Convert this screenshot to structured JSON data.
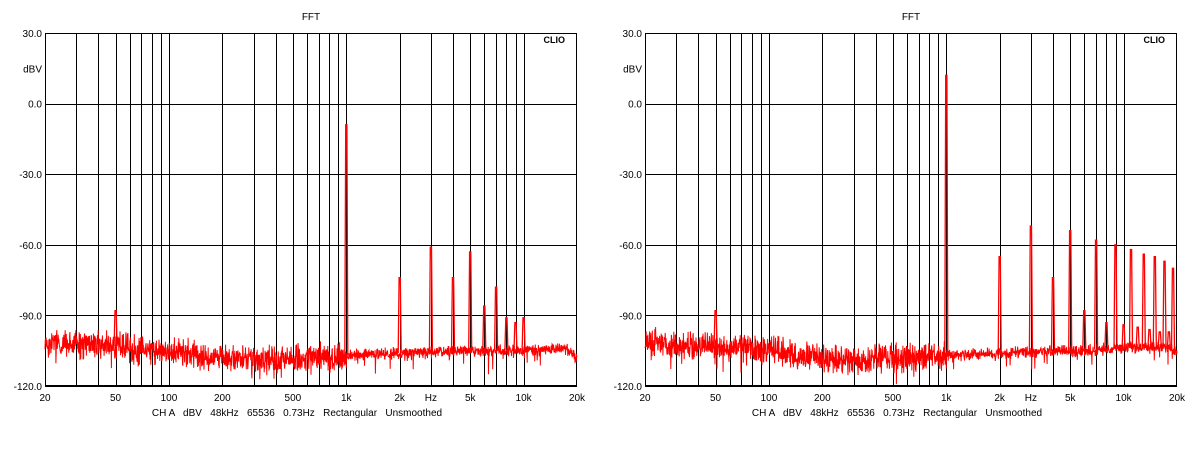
{
  "chart_data": [
    {
      "type": "line",
      "title": "FFT",
      "brand": "CLIO",
      "xlabel": "Hz",
      "ylabel": "dBV",
      "x_scale": "log",
      "xlim": [
        20,
        20000
      ],
      "ylim": [
        -120,
        30
      ],
      "grid": true,
      "x_ticks": [
        {
          "v": 20,
          "label": "20"
        },
        {
          "v": 50,
          "label": "50"
        },
        {
          "v": 100,
          "label": "100"
        },
        {
          "v": 200,
          "label": "200"
        },
        {
          "v": 500,
          "label": "500"
        },
        {
          "v": 1000,
          "label": "1k"
        },
        {
          "v": 2000,
          "label": "2k"
        },
        {
          "v": 5000,
          "label": "5k"
        },
        {
          "v": 10000,
          "label": "10k"
        },
        {
          "v": 20000,
          "label": "20k"
        }
      ],
      "y_ticks": [
        {
          "v": 30,
          "label": "30.0"
        },
        {
          "v": 0,
          "label": "0.0"
        },
        {
          "v": -30,
          "label": "-30.0"
        },
        {
          "v": -60,
          "label": "-60.0"
        },
        {
          "v": -90,
          "label": "-90.0"
        },
        {
          "v": -120,
          "label": "-120.0"
        }
      ],
      "footer": "CH A   dBV   48kHz   65536   0.73Hz   Rectangular   Unsmoothed",
      "series_color": "#ff0000",
      "noise_floor": [
        {
          "x": 20,
          "y": -102
        },
        {
          "x": 30,
          "y": -102
        },
        {
          "x": 50,
          "y": -103
        },
        {
          "x": 100,
          "y": -105
        },
        {
          "x": 200,
          "y": -108
        },
        {
          "x": 300,
          "y": -109
        },
        {
          "x": 500,
          "y": -108
        },
        {
          "x": 1000,
          "y": -107
        },
        {
          "x": 2000,
          "y": -106
        },
        {
          "x": 5000,
          "y": -105
        },
        {
          "x": 10000,
          "y": -105
        },
        {
          "x": 17000,
          "y": -104
        },
        {
          "x": 20000,
          "y": -108
        }
      ],
      "peaks": [
        {
          "x": 50,
          "y": -88
        },
        {
          "x": 1000,
          "y": -9
        },
        {
          "x": 2000,
          "y": -74
        },
        {
          "x": 3000,
          "y": -61
        },
        {
          "x": 4000,
          "y": -74
        },
        {
          "x": 5000,
          "y": -63
        },
        {
          "x": 6000,
          "y": -86
        },
        {
          "x": 7000,
          "y": -78
        },
        {
          "x": 8000,
          "y": -91
        },
        {
          "x": 9000,
          "y": -93
        },
        {
          "x": 10000,
          "y": -91
        }
      ]
    },
    {
      "type": "line",
      "title": "FFT",
      "brand": "CLIO",
      "xlabel": "Hz",
      "ylabel": "dBV",
      "x_scale": "log",
      "xlim": [
        20,
        20000
      ],
      "ylim": [
        -120,
        30
      ],
      "grid": true,
      "x_ticks": [
        {
          "v": 20,
          "label": "20"
        },
        {
          "v": 50,
          "label": "50"
        },
        {
          "v": 100,
          "label": "100"
        },
        {
          "v": 200,
          "label": "200"
        },
        {
          "v": 500,
          "label": "500"
        },
        {
          "v": 1000,
          "label": "1k"
        },
        {
          "v": 2000,
          "label": "2k"
        },
        {
          "v": 5000,
          "label": "5k"
        },
        {
          "v": 10000,
          "label": "10k"
        },
        {
          "v": 20000,
          "label": "20k"
        }
      ],
      "y_ticks": [
        {
          "v": 30,
          "label": "30.0"
        },
        {
          "v": 0,
          "label": "0.0"
        },
        {
          "v": -30,
          "label": "-30.0"
        },
        {
          "v": -60,
          "label": "-60.0"
        },
        {
          "v": -90,
          "label": "-90.0"
        },
        {
          "v": -120,
          "label": "-120.0"
        }
      ],
      "footer": "CH A   dBV   48kHz   65536   0.73Hz   Rectangular   Unsmoothed",
      "series_color": "#ff0000",
      "noise_floor": [
        {
          "x": 20,
          "y": -102
        },
        {
          "x": 30,
          "y": -102
        },
        {
          "x": 50,
          "y": -103
        },
        {
          "x": 100,
          "y": -105
        },
        {
          "x": 200,
          "y": -108
        },
        {
          "x": 300,
          "y": -109
        },
        {
          "x": 500,
          "y": -108
        },
        {
          "x": 1000,
          "y": -107
        },
        {
          "x": 2000,
          "y": -106
        },
        {
          "x": 5000,
          "y": -105
        },
        {
          "x": 10000,
          "y": -104
        },
        {
          "x": 17000,
          "y": -103
        },
        {
          "x": 20000,
          "y": -106
        }
      ],
      "peaks": [
        {
          "x": 50,
          "y": -88
        },
        {
          "x": 1000,
          "y": 12
        },
        {
          "x": 2000,
          "y": -65
        },
        {
          "x": 3000,
          "y": -52
        },
        {
          "x": 4000,
          "y": -74
        },
        {
          "x": 5000,
          "y": -54
        },
        {
          "x": 6000,
          "y": -88
        },
        {
          "x": 7000,
          "y": -58
        },
        {
          "x": 8000,
          "y": -93
        },
        {
          "x": 9000,
          "y": -60
        },
        {
          "x": 10000,
          "y": -94
        },
        {
          "x": 11000,
          "y": -62
        },
        {
          "x": 12000,
          "y": -95
        },
        {
          "x": 13000,
          "y": -64
        },
        {
          "x": 14000,
          "y": -96
        },
        {
          "x": 15000,
          "y": -65
        },
        {
          "x": 16000,
          "y": -97
        },
        {
          "x": 17000,
          "y": -67
        },
        {
          "x": 18000,
          "y": -97
        },
        {
          "x": 19000,
          "y": -70
        }
      ]
    }
  ]
}
